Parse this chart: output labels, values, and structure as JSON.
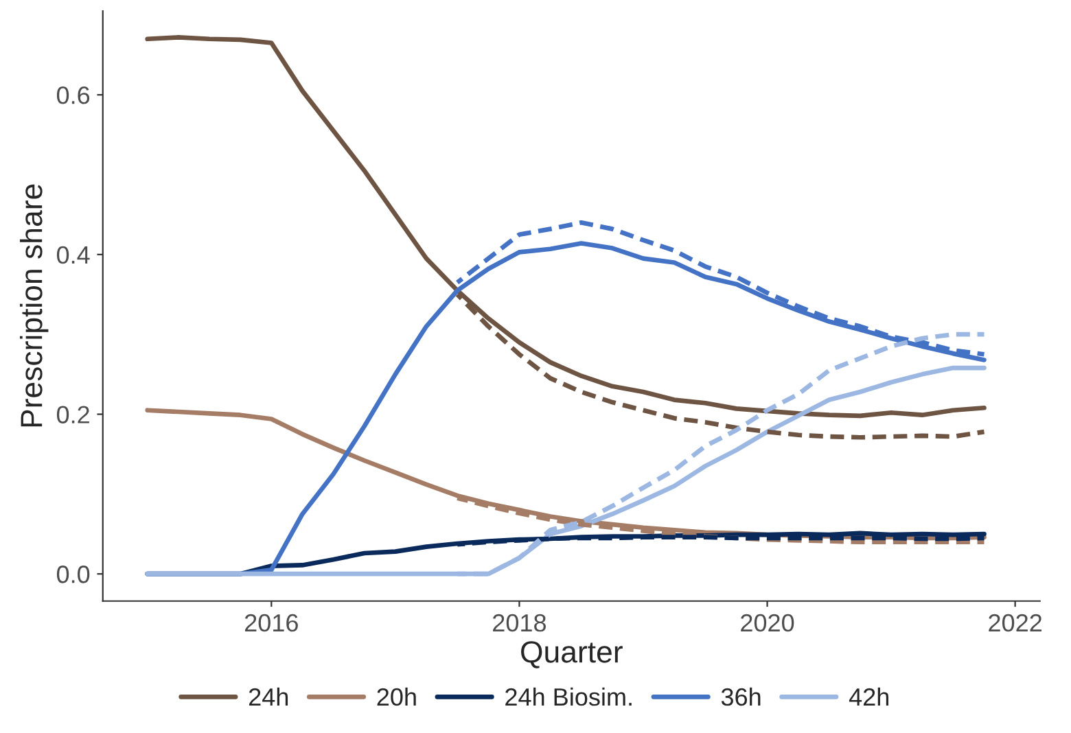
{
  "chart_data": {
    "type": "line",
    "xlabel": "Quarter",
    "ylabel": "Prescription share",
    "x": [
      2015,
      2015.25,
      2015.5,
      2015.75,
      2016,
      2016.25,
      2016.5,
      2016.75,
      2017,
      2017.25,
      2017.5,
      2017.75,
      2018,
      2018.25,
      2018.5,
      2018.75,
      2019,
      2019.25,
      2019.5,
      2019.75,
      2020,
      2020.25,
      2020.5,
      2020.75,
      2021,
      2021.25,
      2021.5,
      2021.75
    ],
    "series": [
      {
        "name": "24h",
        "color": "#6e5443",
        "line_style": "solid",
        "values": [
          0.67,
          0.672,
          0.67,
          0.669,
          0.665,
          0.605,
          0.555,
          0.505,
          0.45,
          0.395,
          0.355,
          0.32,
          0.29,
          0.265,
          0.248,
          0.235,
          0.228,
          0.218,
          0.214,
          0.207,
          0.204,
          0.201,
          0.199,
          0.198,
          0.202,
          0.199,
          0.205,
          0.208
        ]
      },
      {
        "name": "20h",
        "color": "#a57c65",
        "line_style": "solid",
        "values": [
          0.205,
          0.203,
          0.201,
          0.199,
          0.194,
          0.175,
          0.158,
          0.142,
          0.127,
          0.112,
          0.098,
          0.088,
          0.08,
          0.072,
          0.066,
          0.062,
          0.058,
          0.055,
          0.052,
          0.051,
          0.049,
          0.048,
          0.047,
          0.046,
          0.046,
          0.045,
          0.045,
          0.046
        ]
      },
      {
        "name": "24h Biosim.",
        "color": "#0b2a5c",
        "line_style": "solid",
        "values": [
          0,
          0,
          0,
          0,
          0.01,
          0.011,
          0.018,
          0.026,
          0.028,
          0.034,
          0.038,
          0.041,
          0.043,
          0.044,
          0.046,
          0.047,
          0.047,
          0.048,
          0.048,
          0.049,
          0.049,
          0.05,
          0.049,
          0.051,
          0.049,
          0.05,
          0.049,
          0.05
        ]
      },
      {
        "name": "36h",
        "color": "#4473c5",
        "line_style": "solid",
        "values": [
          0,
          0,
          0,
          0,
          0.005,
          0.075,
          0.125,
          0.185,
          0.25,
          0.31,
          0.355,
          0.382,
          0.403,
          0.407,
          0.414,
          0.408,
          0.395,
          0.39,
          0.372,
          0.363,
          0.345,
          0.33,
          0.316,
          0.306,
          0.295,
          0.285,
          0.276,
          0.268
        ]
      },
      {
        "name": "42h",
        "color": "#9cb8e2",
        "line_style": "solid",
        "values": [
          0,
          0,
          0,
          0,
          0,
          0,
          0,
          0,
          0,
          0,
          0,
          0,
          0.02,
          0.05,
          0.06,
          0.075,
          0.092,
          0.11,
          0.135,
          0.155,
          0.178,
          0.198,
          0.218,
          0.228,
          0.24,
          0.25,
          0.258,
          0.258
        ]
      },
      {
        "color": "#6e5443",
        "line_style": "dashed",
        "x": [
          2017.5,
          2017.75,
          2018,
          2018.25,
          2018.5,
          2018.75,
          2019,
          2019.25,
          2019.5,
          2019.75,
          2020,
          2020.25,
          2020.5,
          2020.75,
          2021,
          2021.25,
          2021.5,
          2021.75
        ],
        "values": [
          0.35,
          0.31,
          0.275,
          0.245,
          0.228,
          0.215,
          0.205,
          0.195,
          0.19,
          0.183,
          0.178,
          0.174,
          0.172,
          0.171,
          0.172,
          0.173,
          0.172,
          0.178
        ]
      },
      {
        "color": "#a57c65",
        "line_style": "dashed",
        "x": [
          2017.5,
          2017.75,
          2018,
          2018.25,
          2018.5,
          2018.75,
          2019,
          2019.25,
          2019.5,
          2019.75,
          2020,
          2020.25,
          2020.5,
          2020.75,
          2021,
          2021.25,
          2021.5,
          2021.75
        ],
        "values": [
          0.095,
          0.085,
          0.076,
          0.068,
          0.062,
          0.058,
          0.054,
          0.05,
          0.047,
          0.045,
          0.043,
          0.042,
          0.041,
          0.04,
          0.04,
          0.04,
          0.04,
          0.04
        ]
      },
      {
        "color": "#0b2a5c",
        "line_style": "dashed",
        "x": [
          2017.5,
          2017.75,
          2018,
          2018.25,
          2018.5,
          2018.75,
          2019,
          2019.25,
          2019.5,
          2019.75,
          2020,
          2020.25,
          2020.5,
          2020.75,
          2021,
          2021.25,
          2021.5,
          2021.75
        ],
        "values": [
          0.037,
          0.04,
          0.042,
          0.044,
          0.045,
          0.045,
          0.046,
          0.046,
          0.046,
          0.045,
          0.045,
          0.045,
          0.045,
          0.045,
          0.045,
          0.044,
          0.044,
          0.045
        ]
      },
      {
        "color": "#4473c5",
        "line_style": "dashed",
        "x": [
          2017.5,
          2017.75,
          2018,
          2018.25,
          2018.5,
          2018.75,
          2019,
          2019.25,
          2019.5,
          2019.75,
          2020,
          2020.25,
          2020.5,
          2020.75,
          2021,
          2021.25,
          2021.5,
          2021.75
        ],
        "values": [
          0.365,
          0.395,
          0.425,
          0.432,
          0.44,
          0.432,
          0.418,
          0.405,
          0.385,
          0.372,
          0.352,
          0.335,
          0.32,
          0.31,
          0.297,
          0.29,
          0.28,
          0.275
        ]
      },
      {
        "color": "#9cb8e2",
        "line_style": "dashed",
        "x": [
          2017.5,
          2017.75,
          2018,
          2018.25,
          2018.5,
          2018.75,
          2019,
          2019.25,
          2019.5,
          2019.75,
          2020,
          2020.25,
          2020.5,
          2020.75,
          2021,
          2021.25,
          2021.5,
          2021.75
        ],
        "values": [
          0,
          0,
          0.02,
          0.055,
          0.065,
          0.085,
          0.108,
          0.13,
          0.16,
          0.18,
          0.205,
          0.225,
          0.255,
          0.27,
          0.285,
          0.295,
          0.3,
          0.3
        ]
      }
    ],
    "xlim": [
      2014.64,
      2022.2
    ],
    "xticks": [
      2016,
      2018,
      2020,
      2022
    ],
    "ylim": [
      -0.034,
      0.705
    ],
    "yticks": [
      {
        "value": 0,
        "label": "0.0"
      },
      0.2,
      0.4,
      0.6
    ],
    "grid": false,
    "legend": "bottom",
    "marker": "none"
  }
}
